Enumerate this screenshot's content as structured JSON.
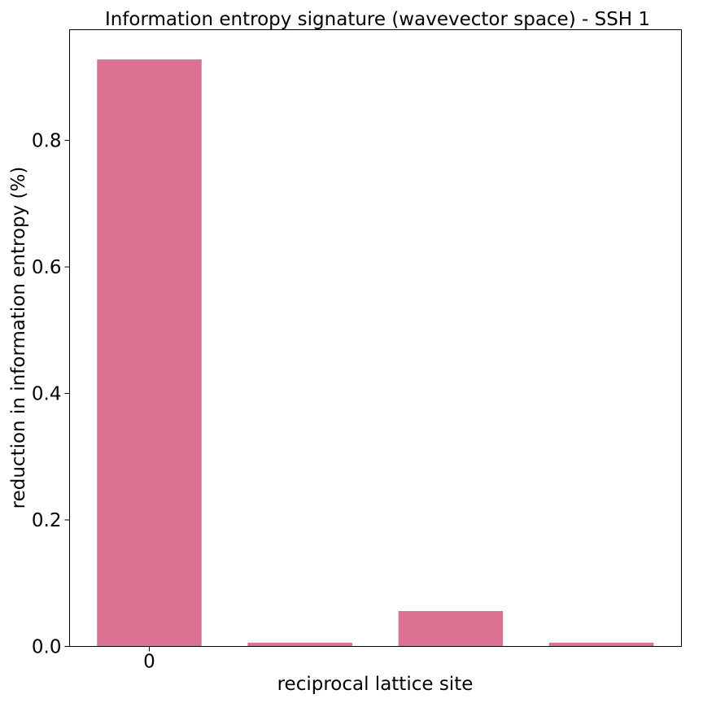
{
  "chart_data": {
    "type": "bar",
    "title": "Information entropy signature (wavevector space) - SSH 1",
    "xlabel": "reciprocal lattice site",
    "ylabel": "reduction in information entropy (%)",
    "categories": [
      "0",
      "",
      "",
      ""
    ],
    "values": [
      0.928,
      0.006,
      0.056,
      0.006
    ],
    "ylim": [
      0,
      0.975
    ],
    "yticks": [
      0.0,
      0.2,
      0.4,
      0.6,
      0.8
    ],
    "ytick_labels": [
      "0.0",
      "0.2",
      "0.4",
      "0.6",
      "0.8"
    ],
    "bar_color": "#dc7191",
    "grid": false,
    "legend": "none"
  }
}
